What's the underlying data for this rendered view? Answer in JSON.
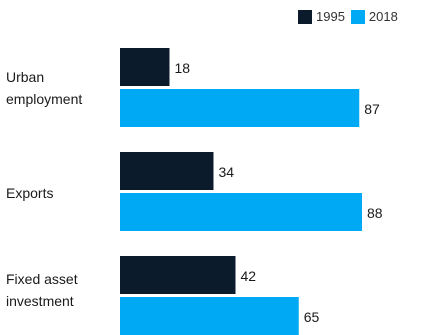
{
  "chart_data": {
    "type": "bar",
    "orientation": "horizontal",
    "categories": [
      "Urban\nemployment",
      "Exports",
      "Fixed asset\ninvestment"
    ],
    "series": [
      {
        "name": "1995",
        "color": "#0b1b2c",
        "values": [
          18,
          34,
          42
        ]
      },
      {
        "name": "2018",
        "color": "#00a9f4",
        "values": [
          87,
          88,
          65
        ]
      }
    ],
    "xlim": [
      0,
      100
    ],
    "grid": false,
    "legend_position": "top-right",
    "data_labels": true
  }
}
